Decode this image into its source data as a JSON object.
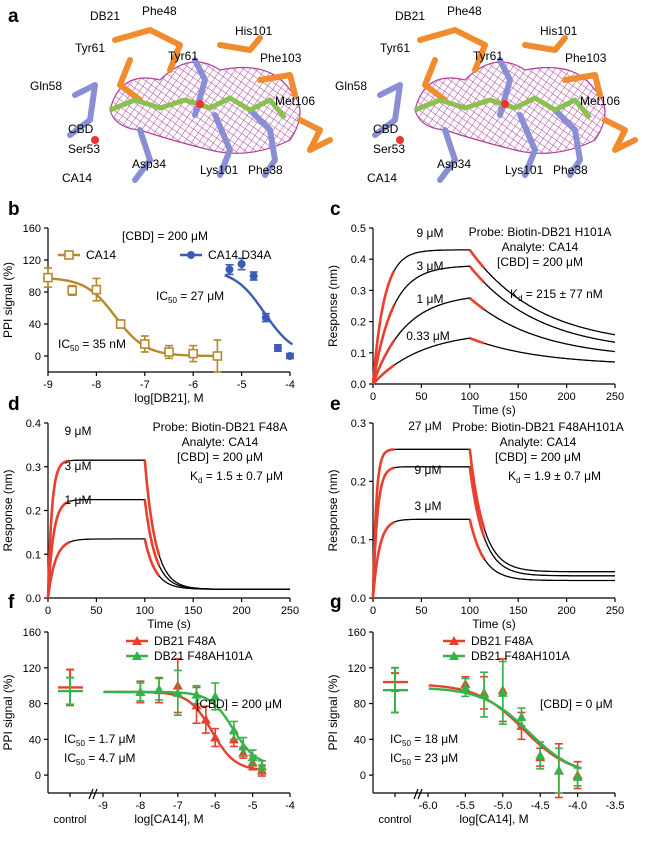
{
  "figure": {
    "panels": [
      {
        "id": "a",
        "label": "a"
      },
      {
        "id": "b",
        "label": "b"
      },
      {
        "id": "c",
        "label": "c"
      },
      {
        "id": "d",
        "label": "d"
      },
      {
        "id": "e",
        "label": "e"
      },
      {
        "id": "f",
        "label": "f"
      },
      {
        "id": "g",
        "label": "g"
      }
    ]
  },
  "structure": {
    "db21_color": "#f08c2e",
    "ca14_color": "#8a8fd4",
    "cbd_color": "#8cc152",
    "mesh_color": "#a0208c",
    "labels": [
      {
        "text": "DB21",
        "color": "#f08c2e",
        "size": "big"
      },
      {
        "text": "Phe48",
        "color": "#f08c2e",
        "size": "small"
      },
      {
        "text": "His101",
        "color": "#f08c2e",
        "size": "small"
      },
      {
        "text": "Tyr61",
        "color": "#f08c2e",
        "size": "small"
      },
      {
        "text": "Tyr61",
        "color": "#8a8fd4",
        "size": "small"
      },
      {
        "text": "Phe103",
        "color": "#f08c2e",
        "size": "small"
      },
      {
        "text": "Gln58",
        "color": "#8a8fd4",
        "size": "small"
      },
      {
        "text": "Met106",
        "color": "#f08c2e",
        "size": "small"
      },
      {
        "text": "CBD",
        "color": "#8cc152",
        "size": "mid"
      },
      {
        "text": "Ser53",
        "color": "#8a8fd4",
        "size": "small"
      },
      {
        "text": "CA14",
        "color": "#8a8fd4",
        "size": "big"
      },
      {
        "text": "Asp34",
        "color": "#8a8fd4",
        "size": "small"
      },
      {
        "text": "Lys101",
        "color": "#8a8fd4",
        "size": "small"
      },
      {
        "text": "Phe38",
        "color": "#8a8fd4",
        "size": "small"
      }
    ]
  },
  "chart_data": [
    {
      "id": "b",
      "type": "scatter",
      "xlabel": "log[DB21], M",
      "ylabel": "PPI signal (%)",
      "xlim": [
        -9,
        -4
      ],
      "ylim": [
        -20,
        160
      ],
      "xticks": [
        "-9",
        "-8",
        "-7",
        "-6",
        "-5",
        "-4"
      ],
      "yticks": [
        "0",
        "40",
        "80",
        "120",
        "160"
      ],
      "annotations": [
        "[CBD] = 200 μM"
      ],
      "legend_placement": "top",
      "series": [
        {
          "name": "CA14",
          "color": "#b8892a",
          "marker": "square-open",
          "x": [
            -9,
            -8.5,
            -8,
            -7.5,
            -7,
            -6.5,
            -6,
            -5.5
          ],
          "y": [
            98,
            82,
            83,
            40,
            15,
            5,
            3,
            0
          ],
          "err": [
            12,
            6,
            14,
            5,
            10,
            8,
            10,
            20
          ],
          "ic50_label": "IC",
          "ic50_value": "= 35 nM"
        },
        {
          "name": "CA14 D34A",
          "color": "#3b5bb5",
          "marker": "circle",
          "x": [
            -5.25,
            -5,
            -4.75,
            -4.5,
            -4.25,
            -4
          ],
          "y": [
            108,
            115,
            100,
            48,
            10,
            0
          ],
          "err": [
            6,
            7,
            5,
            5,
            4,
            3
          ],
          "ic50_label": "IC",
          "ic50_value": "= 27 μM"
        }
      ],
      "ic50_sub": "50"
    },
    {
      "id": "c",
      "type": "line",
      "xlabel": "Time (s)",
      "ylabel": "Response (nm)",
      "xlim": [
        0,
        250
      ],
      "ylim": [
        0,
        0.5
      ],
      "xticks": [
        "0",
        "50",
        "100",
        "150",
        "200",
        "250"
      ],
      "yticks": [
        "0.0",
        "0.1",
        "0.2",
        "0.3",
        "0.4",
        "0.5"
      ],
      "annotations": [
        "Probe: Biotin-DB21 H101A",
        "Analyte: CA14",
        "[CBD] = 200 μM"
      ],
      "kd_label": "K",
      "kd_sub": "d",
      "kd_value": "= 215 ± 77 nM",
      "t_on": 100,
      "series": [
        {
          "name": "9 μM",
          "plateau": 0.43,
          "kon": 0.085,
          "koff": 0.014,
          "resid": 0.12
        },
        {
          "name": "3 μM",
          "plateau": 0.38,
          "kon": 0.05,
          "koff": 0.014,
          "resid": 0.1
        },
        {
          "name": "1 μM",
          "plateau": 0.29,
          "kon": 0.03,
          "koff": 0.014,
          "resid": 0.08
        },
        {
          "name": "0.33 μM",
          "plateau": 0.17,
          "kon": 0.02,
          "koff": 0.014,
          "resid": 0.06
        }
      ]
    },
    {
      "id": "d",
      "type": "line",
      "xlabel": "Time (s)",
      "ylabel": "Response (nm)",
      "xlim": [
        0,
        250
      ],
      "ylim": [
        0,
        0.4
      ],
      "xticks": [
        "0",
        "50",
        "100",
        "150",
        "200",
        "250"
      ],
      "yticks": [
        "0.0",
        "0.1",
        "0.2",
        "0.3",
        "0.4"
      ],
      "annotations": [
        "Probe: Biotin-DB21 F48A",
        "Analyte: CA14",
        "[CBD] = 200 μM"
      ],
      "kd_label": "K",
      "kd_sub": "d",
      "kd_value": "= 1.5 ± 0.7 μM",
      "t_on": 100,
      "series": [
        {
          "name": "9 μM",
          "plateau": 0.315,
          "kon": 0.25,
          "koff": 0.09,
          "resid": 0.02
        },
        {
          "name": "3 μM",
          "plateau": 0.225,
          "kon": 0.18,
          "koff": 0.09,
          "resid": 0.02
        },
        {
          "name": "1 μM",
          "plateau": 0.135,
          "kon": 0.13,
          "koff": 0.09,
          "resid": 0.02
        }
      ]
    },
    {
      "id": "e",
      "type": "line",
      "xlabel": "Time (s)",
      "ylabel": "Response (nm)",
      "xlim": [
        0,
        250
      ],
      "ylim": [
        0,
        0.3
      ],
      "xticks": [
        "0",
        "50",
        "100",
        "150",
        "200",
        "250"
      ],
      "yticks": [
        "0.0",
        "0.1",
        "0.2",
        "0.3"
      ],
      "annotations": [
        "Probe: Biotin-DB21 F48AH101A",
        "Analyte: CA14",
        "[CBD] = 200 μM"
      ],
      "kd_label": "K",
      "kd_sub": "d",
      "kd_value": "= 1.9 ± 0.7 μM",
      "t_on": 100,
      "series": [
        {
          "name": "27 μM",
          "plateau": 0.255,
          "kon": 0.3,
          "koff": 0.07,
          "resid": 0.045
        },
        {
          "name": "9 μM",
          "plateau": 0.225,
          "kon": 0.22,
          "koff": 0.07,
          "resid": 0.038
        },
        {
          "name": "3 μM",
          "plateau": 0.135,
          "kon": 0.15,
          "koff": 0.07,
          "resid": 0.03
        }
      ]
    },
    {
      "id": "f",
      "type": "scatter",
      "xlabel": "log[CA14], M",
      "ylabel": "PPI signal (%)",
      "control_label": "control",
      "xlim": [
        -9,
        -4
      ],
      "ylim": [
        -20,
        160
      ],
      "xticks": [
        "-9",
        "-8",
        "-7",
        "-6",
        "-5",
        "-4"
      ],
      "yticks": [
        "0",
        "40",
        "80",
        "120",
        "160"
      ],
      "annotations": [
        "[CBD] = 200 μM"
      ],
      "legend_placement": "top",
      "ic50_sub": "50",
      "series": [
        {
          "name": "DB21 F48A",
          "color": "#e8402e",
          "control": 98,
          "control_err": 20,
          "x": [
            -8,
            -7.5,
            -7,
            -6.5,
            -6.25,
            -6,
            -5.5,
            -5.25,
            -5,
            -4.75
          ],
          "y": [
            93,
            95,
            100,
            78,
            62,
            42,
            40,
            25,
            14,
            5
          ],
          "err": [
            12,
            14,
            30,
            20,
            15,
            10,
            8,
            6,
            8,
            6
          ],
          "ic50_label": "IC",
          "ic50_value": "= 1.7 μM"
        },
        {
          "name": "DB21 F48AH101A",
          "color": "#35b34a",
          "control": 94,
          "control_err": 15,
          "x": [
            -8,
            -7.5,
            -7,
            -6.5,
            -6,
            -5.5,
            -5.25,
            -5,
            -4.75
          ],
          "y": [
            93,
            96,
            92,
            90,
            88,
            50,
            32,
            20,
            10
          ],
          "err": [
            10,
            12,
            25,
            10,
            15,
            10,
            10,
            8,
            6
          ],
          "ic50_label": "IC",
          "ic50_value": "= 4.7 μM"
        }
      ]
    },
    {
      "id": "g",
      "type": "scatter",
      "xlabel": "log[CA14], M",
      "ylabel": "PPI signal (%)",
      "control_label": "control",
      "xlim": [
        -6.0,
        -3.5
      ],
      "ylim": [
        -20,
        160
      ],
      "xticks": [
        "-6.0",
        "-5.5",
        "-5.0",
        "-4.5",
        "-4.0",
        "-3.5"
      ],
      "yticks": [
        "0",
        "40",
        "80",
        "120",
        "160"
      ],
      "annotations": [
        "[CBD] = 0 μM"
      ],
      "legend_placement": "top",
      "ic50_sub": "50",
      "series": [
        {
          "name": "DB21 F48A",
          "color": "#e8402e",
          "control": 104,
          "control_err": 10,
          "x": [
            -5.5,
            -5.25,
            -5,
            -4.75,
            -4.5,
            -4.25,
            -4
          ],
          "y": [
            102,
            92,
            95,
            55,
            20,
            5,
            0
          ],
          "err": [
            8,
            18,
            35,
            15,
            10,
            30,
            15
          ],
          "ic50_label": "IC",
          "ic50_value": "= 18 μM"
        },
        {
          "name": "DB21 F48AH101A",
          "color": "#35b34a",
          "control": 95,
          "control_err": 25,
          "x": [
            -5.5,
            -5.25,
            -5,
            -4.75,
            -4.5,
            -4.25,
            -4
          ],
          "y": [
            98,
            90,
            92,
            65,
            22,
            5,
            -2
          ],
          "err": [
            10,
            25,
            35,
            10,
            15,
            25,
            10
          ],
          "ic50_label": "IC",
          "ic50_value": "= 23 μM"
        }
      ]
    }
  ]
}
